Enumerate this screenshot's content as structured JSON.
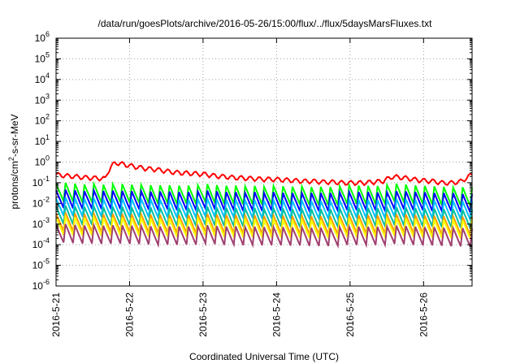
{
  "chart_data": {
    "type": "line",
    "title": "/data/run/goesPlots/archive/2016-05-26/15:00/flux/../flux/5daysMarsFluxes.txt",
    "xlabel": "Coordinated Universal Time (UTC)",
    "ylabel_main": "protons/cm",
    "ylabel_sup": "2",
    "ylabel_rest": "-s-sr-MeV",
    "y_scale": "log",
    "ylim_exp": [
      -6,
      6
    ],
    "y_tick_exponents": [
      -6,
      -5,
      -4,
      -3,
      -2,
      -1,
      0,
      1,
      2,
      3,
      4,
      5,
      6
    ],
    "y_tick_base": "10",
    "xlim_days": [
      0,
      5.66
    ],
    "x_ticks": [
      {
        "day": 0,
        "label": "2016-5-21"
      },
      {
        "day": 1,
        "label": "2016-5-22"
      },
      {
        "day": 2,
        "label": "2016-5-23"
      },
      {
        "day": 3,
        "label": "2016-5-24"
      },
      {
        "day": 4,
        "label": "2016-5-25"
      },
      {
        "day": 5,
        "label": "2016-5-26"
      }
    ],
    "grid": true,
    "grid_style": "dotted",
    "series": [
      {
        "color": "#ff0000",
        "values": [
          0.25,
          0.22,
          0.2,
          0.18,
          0.17,
          0.16,
          0.95,
          0.75,
          0.6,
          0.5,
          0.45,
          0.38,
          0.32,
          0.3,
          0.28,
          0.26,
          0.22,
          0.2,
          0.18,
          0.17,
          0.16,
          0.15,
          0.15,
          0.14,
          0.13,
          0.12,
          0.12,
          0.11,
          0.11,
          0.1,
          0.1,
          0.1,
          0.11,
          0.12,
          0.2,
          0.18,
          0.15,
          0.13,
          0.12,
          0.1,
          0.1,
          0.12,
          0.25
        ]
      },
      {
        "color": "#00ff00",
        "values": [
          0.025,
          0.028,
          0.025,
          0.023,
          0.025,
          0.022,
          0.025,
          0.024,
          0.022,
          0.023,
          0.02,
          0.022,
          0.02,
          0.021,
          0.02,
          0.025,
          0.022,
          0.02,
          0.021,
          0.019,
          0.02,
          0.018,
          0.02,
          0.019,
          0.018,
          0.019,
          0.017,
          0.018,
          0.017,
          0.02,
          0.021,
          0.02,
          0.02,
          0.019,
          0.026,
          0.024,
          0.021,
          0.02,
          0.019,
          0.018,
          0.017,
          0.017,
          0.016
        ]
      },
      {
        "color": "#0000ff",
        "values": [
          0.012,
          0.013,
          0.012,
          0.011,
          0.012,
          0.011,
          0.012,
          0.011,
          0.011,
          0.011,
          0.01,
          0.011,
          0.01,
          0.01,
          0.01,
          0.012,
          0.011,
          0.01,
          0.01,
          0.009,
          0.01,
          0.009,
          0.01,
          0.009,
          0.009,
          0.009,
          0.009,
          0.009,
          0.009,
          0.01,
          0.01,
          0.01,
          0.01,
          0.009,
          0.011,
          0.011,
          0.01,
          0.01,
          0.009,
          0.009,
          0.009,
          0.008,
          0.008
        ]
      },
      {
        "color": "#00c0ff",
        "values": [
          0.005,
          0.0055,
          0.005,
          0.0048,
          0.005,
          0.0046,
          0.005,
          0.0048,
          0.0046,
          0.0047,
          0.0043,
          0.0045,
          0.0042,
          0.0044,
          0.0042,
          0.005,
          0.0046,
          0.0043,
          0.0044,
          0.004,
          0.0042,
          0.0039,
          0.0041,
          0.004,
          0.0038,
          0.0039,
          0.0037,
          0.0038,
          0.0037,
          0.0042,
          0.0043,
          0.0042,
          0.0042,
          0.004,
          0.0048,
          0.0046,
          0.0043,
          0.0041,
          0.004,
          0.0038,
          0.0037,
          0.0036,
          0.0035
        ]
      },
      {
        "color": "#00c0a0",
        "values": [
          0.002,
          0.0022,
          0.002,
          0.0019,
          0.002,
          0.0018,
          0.002,
          0.0019,
          0.0018,
          0.0019,
          0.0017,
          0.0018,
          0.0017,
          0.0017,
          0.0017,
          0.002,
          0.0018,
          0.0017,
          0.0017,
          0.0016,
          0.0017,
          0.0015,
          0.0016,
          0.0016,
          0.0015,
          0.0015,
          0.0015,
          0.0015,
          0.0015,
          0.0017,
          0.0017,
          0.0017,
          0.0017,
          0.0016,
          0.0019,
          0.0018,
          0.0017,
          0.0016,
          0.0016,
          0.0015,
          0.0015,
          0.0014,
          0.0014
        ]
      },
      {
        "color": "#ff9900",
        "values": [
          0.0009,
          0.001,
          0.0009,
          0.00085,
          0.0009,
          0.00082,
          0.0009,
          0.00086,
          0.00082,
          0.00084,
          0.00077,
          0.0008,
          0.00075,
          0.00078,
          0.00075,
          0.0009,
          0.00082,
          0.00077,
          0.00078,
          0.00072,
          0.00075,
          0.0007,
          0.00073,
          0.00071,
          0.00068,
          0.0007,
          0.00066,
          0.00068,
          0.00066,
          0.00075,
          0.00077,
          0.00075,
          0.00075,
          0.00072,
          0.00086,
          0.00082,
          0.00077,
          0.00073,
          0.00071,
          0.00068,
          0.00066,
          0.00064,
          0.00062
        ]
      },
      {
        "color": "#ffff00",
        "values": [
          0.0006,
          0.00065,
          0.0006,
          0.00057,
          0.0006,
          0.00055,
          0.0006,
          0.00057,
          0.00055,
          0.00056,
          0.00051,
          0.00053,
          0.0005,
          0.00052,
          0.0005,
          0.0006,
          0.00055,
          0.00051,
          0.00052,
          0.00048,
          0.0005,
          0.00047,
          0.00049,
          0.00047,
          0.00045,
          0.00047,
          0.00044,
          0.00045,
          0.00044,
          0.0005,
          0.00051,
          0.0005,
          0.0005,
          0.00048,
          0.00057,
          0.00055,
          0.00051,
          0.00049,
          0.00047,
          0.00045,
          0.00044,
          0.00043,
          0.00042
        ]
      },
      {
        "color": "#a04070",
        "values": [
          0.00025,
          0.00028,
          0.00025,
          0.00024,
          0.00025,
          0.00023,
          0.00025,
          0.00024,
          0.00023,
          0.00023,
          0.00021,
          0.00022,
          0.00021,
          0.00022,
          0.00021,
          0.00025,
          0.00023,
          0.00021,
          0.00022,
          0.0002,
          0.00021,
          0.0002,
          0.0002,
          0.0002,
          0.00019,
          0.0002,
          0.00018,
          0.00019,
          0.00018,
          0.00021,
          0.00021,
          0.00021,
          0.00021,
          0.0002,
          0.00024,
          0.00023,
          0.00021,
          0.0002,
          0.0002,
          0.00019,
          0.00018,
          0.00018,
          0.00017
        ]
      }
    ]
  }
}
